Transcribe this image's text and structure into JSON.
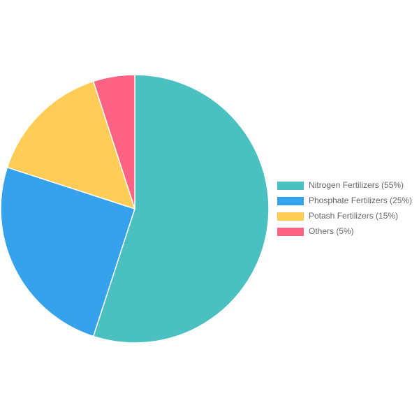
{
  "chart_data": {
    "type": "pie",
    "categories": [
      "Nitrogen Fertilizers (55%)",
      "Phosphate Fertilizers (25%)",
      "Potash Fertilizers (15%)",
      "Others (5%)"
    ],
    "values": [
      55,
      25,
      15,
      5
    ],
    "colors": [
      "#4bc0c0",
      "#36a2eb",
      "#ffcd56",
      "#ff6384"
    ],
    "legend": "right"
  }
}
